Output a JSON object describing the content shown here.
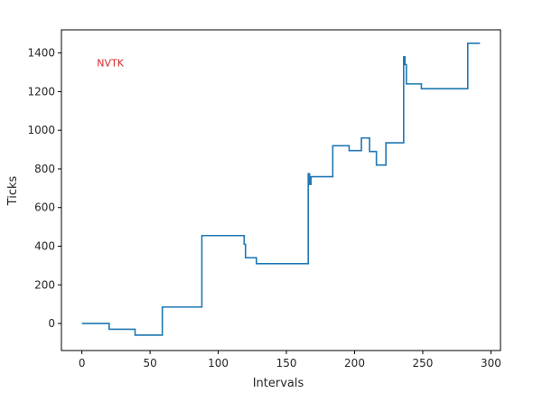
{
  "chart_data": {
    "type": "line",
    "title": "",
    "xlabel": "Intervals",
    "ylabel": "Ticks",
    "xlim": [
      -15,
      307
    ],
    "ylim": [
      -140,
      1520
    ],
    "xticks": [
      0,
      50,
      100,
      150,
      200,
      250,
      300
    ],
    "yticks": [
      0,
      200,
      400,
      600,
      800,
      1000,
      1200,
      1400
    ],
    "grid": false,
    "annotation": {
      "text": "NVTK",
      "x": 11,
      "y": 1330,
      "color": "#d62728"
    },
    "series": [
      {
        "color": "#1f77b4",
        "step": true,
        "x": [
          0,
          19,
          20,
          38,
          39,
          58,
          59,
          87,
          88,
          119,
          120,
          127,
          128,
          165,
          166,
          167,
          168,
          183,
          184,
          195,
          196,
          204,
          205,
          210,
          211,
          215,
          216,
          222,
          223,
          235,
          236,
          237,
          238,
          239,
          249,
          250,
          270,
          282,
          283,
          292
        ],
        "y": [
          0,
          0,
          -30,
          -30,
          -60,
          -60,
          85,
          85,
          455,
          410,
          340,
          340,
          310,
          310,
          775,
          720,
          760,
          760,
          920,
          920,
          895,
          895,
          960,
          960,
          890,
          890,
          820,
          820,
          935,
          935,
          1380,
          1340,
          1240,
          1240,
          1215,
          1215,
          1215,
          1215,
          1450,
          1450
        ]
      }
    ]
  }
}
